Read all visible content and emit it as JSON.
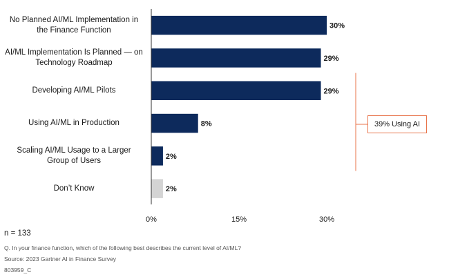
{
  "chart_data": {
    "type": "bar",
    "orientation": "horizontal",
    "categories": [
      "No Planned AI/ML Implementation in the Finance Function",
      "AI/ML Implementation Is Planned — on Technology Roadmap",
      "Developing AI/ML Pilots",
      "Using AI/ML in Production",
      "Scaling AI/ML Usage to a Larger Group of Users",
      "Don’t Know"
    ],
    "values": [
      30,
      29,
      29,
      8,
      2,
      2
    ],
    "value_labels": [
      "30%",
      "29%",
      "29%",
      "8%",
      "2%",
      "2%"
    ],
    "bar_colors": [
      "#0d2a5c",
      "#0d2a5c",
      "#0d2a5c",
      "#0d2a5c",
      "#0d2a5c",
      "#d4d4d4"
    ],
    "xlim": [
      0,
      30
    ],
    "xticks": [
      "0%",
      "15%",
      "30%"
    ],
    "xtick_values": [
      0,
      15,
      30
    ],
    "annotation": {
      "text": "39% Using AI",
      "bracket_from_category": 2,
      "bracket_to_category": 4,
      "color": "#e8734a"
    }
  },
  "sample_size": "n = 133",
  "question": "Q. In your finance function, which of the following best describes the current level of AI/ML?",
  "source": "Source: 2023 Gartner AI in Finance Survey",
  "doc_id": "803959_C"
}
